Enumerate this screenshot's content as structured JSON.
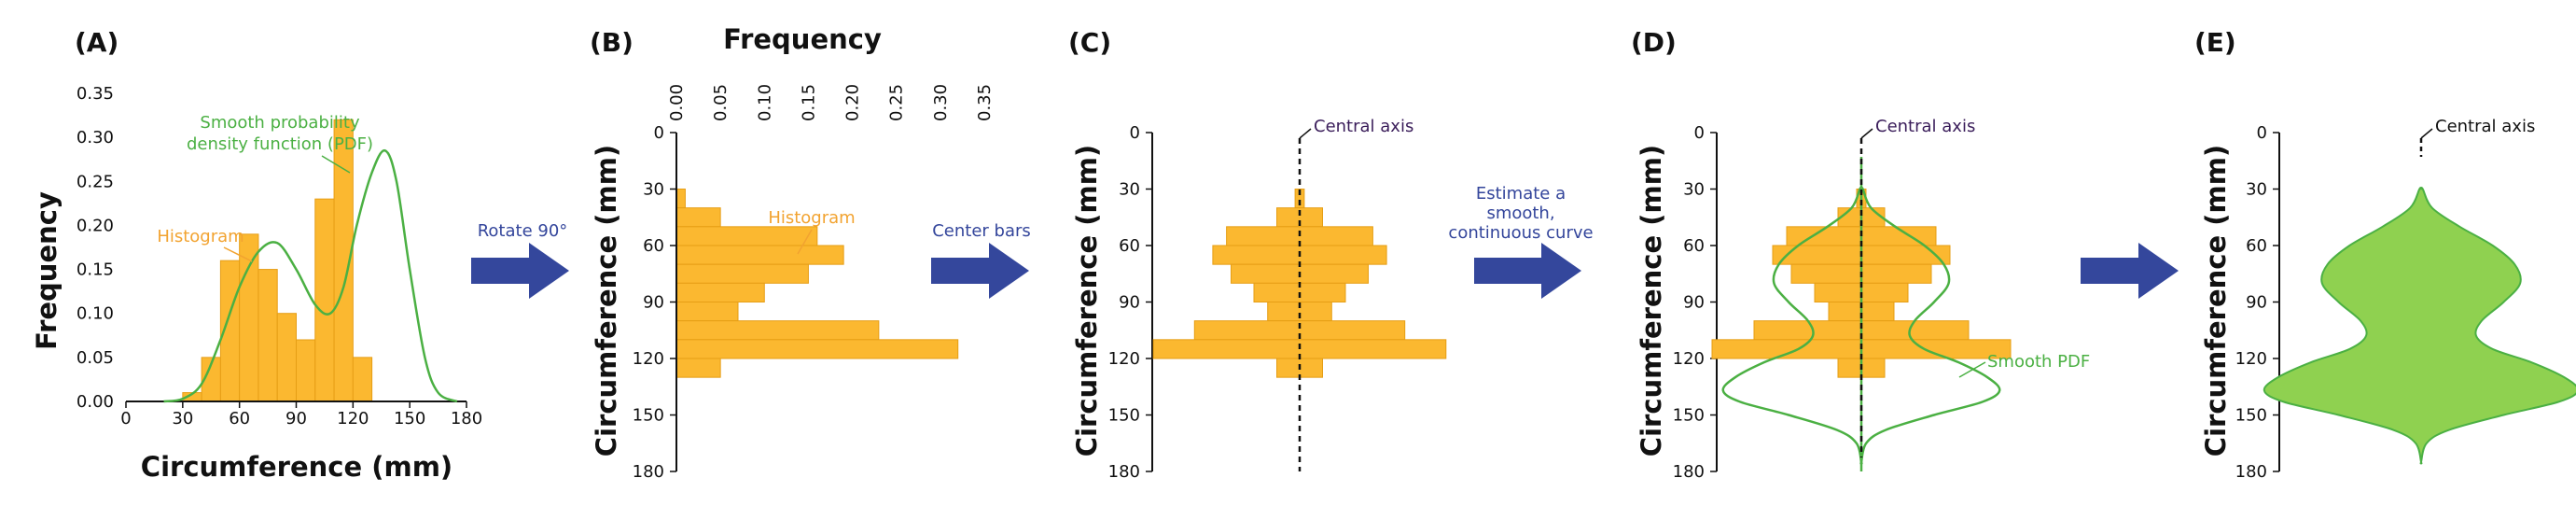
{
  "colors": {
    "bar": "#fbb830",
    "bar_stroke": "#e69e15",
    "curve": "#4bb043",
    "violin_fill": "#8fd150",
    "arrow": "#34479c",
    "axis": "#111111"
  },
  "chart_data": {
    "type": "bar",
    "bin_edges": [
      30,
      40,
      50,
      60,
      70,
      80,
      90,
      100,
      110,
      120,
      130,
      140,
      150,
      160
    ],
    "bin_values": [
      0.01,
      0.05,
      0.16,
      0.19,
      0.15,
      0.1,
      0.07,
      0.23,
      0.32,
      0.05,
      0.0,
      0.0,
      0.0
    ],
    "histogram_rotated_values": [
      0.01,
      0.05,
      0.16,
      0.19,
      0.15,
      0.1,
      0.07,
      0.23,
      0.32,
      0.05
    ],
    "pdf_points": [
      [
        20,
        0.0
      ],
      [
        30,
        0.003
      ],
      [
        40,
        0.02
      ],
      [
        50,
        0.07
      ],
      [
        60,
        0.13
      ],
      [
        70,
        0.17
      ],
      [
        80,
        0.18
      ],
      [
        90,
        0.15
      ],
      [
        100,
        0.11
      ],
      [
        108,
        0.1
      ],
      [
        115,
        0.13
      ],
      [
        122,
        0.2
      ],
      [
        130,
        0.26
      ],
      [
        137,
        0.285
      ],
      [
        143,
        0.25
      ],
      [
        150,
        0.15
      ],
      [
        158,
        0.05
      ],
      [
        165,
        0.01
      ],
      [
        175,
        0.0
      ]
    ]
  },
  "panelA": {
    "letter": "(A)",
    "ylabel": "Frequency",
    "xlabel": "Circumference (mm)",
    "yticks": [
      "0.00",
      "0.05",
      "0.10",
      "0.15",
      "0.20",
      "0.25",
      "0.30",
      "0.35"
    ],
    "xticks": [
      "0",
      "30",
      "60",
      "90",
      "120",
      "150",
      "180"
    ],
    "pdf_label_1": "Smooth probability",
    "pdf_label_2": "density function (PDF)",
    "hist_label": "Histogram"
  },
  "arrow1": {
    "label": "Rotate 90°"
  },
  "panelB": {
    "letter": "(B)",
    "xlabel": "Frequency",
    "ylabel": "Circumference (mm)",
    "xticks": [
      "0.00",
      "0.05",
      "0.10",
      "0.15",
      "0.20",
      "0.25",
      "0.30",
      "0.35"
    ],
    "yticks": [
      "0",
      "30",
      "60",
      "90",
      "120",
      "150",
      "180"
    ],
    "hist_label": "Histogram"
  },
  "arrow2": {
    "label": "Center bars"
  },
  "panelC": {
    "letter": "(C)",
    "ylabel": "Circumference (mm)",
    "yticks": [
      "0",
      "30",
      "60",
      "90",
      "120",
      "150",
      "180"
    ],
    "axis_label": "Central axis"
  },
  "arrow3": {
    "label_1": "Estimate a",
    "label_2": "smooth,",
    "label_3": "continuous curve"
  },
  "panelD": {
    "letter": "(D)",
    "ylabel": "Circumference (mm)",
    "yticks": [
      "0",
      "30",
      "60",
      "90",
      "120",
      "150",
      "180"
    ],
    "axis_label": "Central axis",
    "pdf_label": "Smooth PDF"
  },
  "panelE": {
    "letter": "(E)",
    "ylabel": "Circumference (mm)",
    "yticks": [
      "0",
      "30",
      "60",
      "90",
      "120",
      "150",
      "180"
    ],
    "axis_label": "Central axis"
  }
}
